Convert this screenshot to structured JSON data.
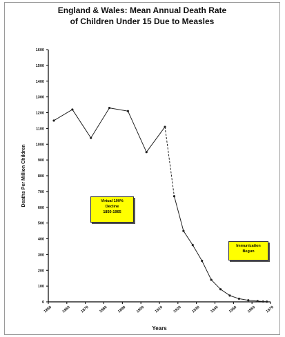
{
  "chart_data": {
    "type": "line",
    "title_line1": "England & Wales: Mean Annual Death Rate",
    "title_line2": "of Children Under 15 Due to Measles",
    "xlabel": "Years",
    "ylabel": "Deaths Per Million Children",
    "xlim": [
      1850,
      1970
    ],
    "ylim": [
      0,
      1600
    ],
    "x_ticks": [
      1850,
      1860,
      1870,
      1880,
      1890,
      1900,
      1910,
      1920,
      1930,
      1940,
      1950,
      1960,
      1970
    ],
    "y_ticks": [
      0,
      100,
      200,
      300,
      400,
      500,
      600,
      700,
      800,
      900,
      1000,
      1100,
      1200,
      1300,
      1400,
      1500,
      1600
    ],
    "series": [
      {
        "x": [
          1853,
          1863,
          1873,
          1883,
          1893,
          1903,
          1913,
          1918,
          1923,
          1928,
          1933,
          1938,
          1943,
          1948,
          1953,
          1958,
          1963,
          1966,
          1968
        ],
        "y": [
          1150,
          1220,
          1040,
          1230,
          1210,
          950,
          1110,
          670,
          450,
          360,
          260,
          140,
          80,
          40,
          20,
          10,
          5,
          2,
          1
        ]
      }
    ],
    "annotations": [
      {
        "lines": [
          "Virtual 100%",
          "Decline",
          "1850-1965"
        ]
      },
      {
        "lines": [
          "Immunization",
          "Begun"
        ]
      }
    ]
  }
}
